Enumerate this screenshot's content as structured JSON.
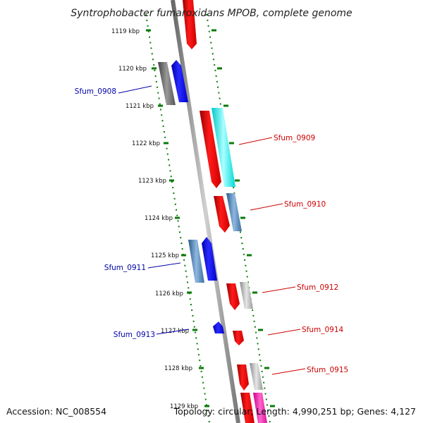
{
  "title": "Syntrophobacter fumaroxidans MPOB, complete genome",
  "footer": {
    "accession": "Accession: NC_008554",
    "topology": "Topology: circular; Length: 4,990,251 bp; Genes: 4,127"
  },
  "colors": {
    "background": "#ffffff",
    "backbone": "#8c8c8c",
    "ruler_ticks": "#0a7a0a",
    "forward_label": "#cc0000",
    "reverse_label": "#0000aa"
  },
  "ruler": {
    "unit": "kbp",
    "ticks": [
      "1119 kbp",
      "1120 kbp",
      "1121 kbp",
      "1122 kbp",
      "1123 kbp",
      "1124 kbp",
      "1125 kbp",
      "1126 kbp",
      "1127 kbp",
      "1128 kbp",
      "1129 kbp"
    ]
  },
  "genes": [
    {
      "label": "Sfum_0908",
      "strand": "reverse"
    },
    {
      "label": "Sfum_0909",
      "strand": "forward"
    },
    {
      "label": "Sfum_0910",
      "strand": "forward"
    },
    {
      "label": "Sfum_0911",
      "strand": "reverse"
    },
    {
      "label": "Sfum_0912",
      "strand": "forward"
    },
    {
      "label": "Sfum_0913",
      "strand": "reverse"
    },
    {
      "label": "Sfum_0914",
      "strand": "forward"
    },
    {
      "label": "Sfum_0915",
      "strand": "forward"
    }
  ]
}
